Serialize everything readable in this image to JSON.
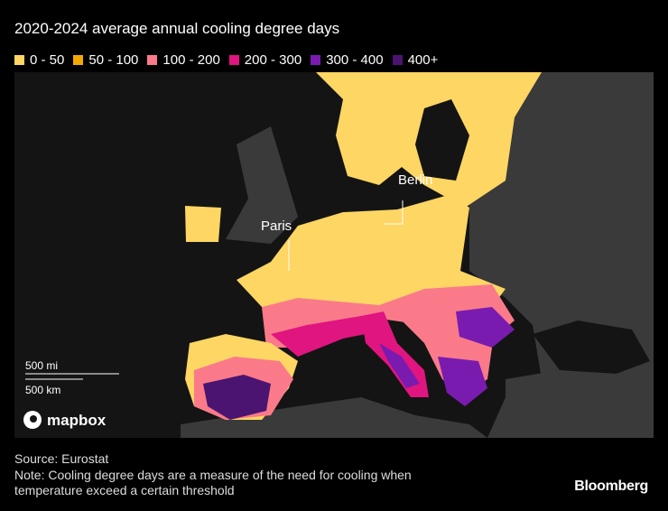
{
  "title": "2020-2024 average annual cooling degree days",
  "legend": {
    "items": [
      {
        "label": "0 - 50",
        "color": "#fdd663"
      },
      {
        "label": "50 - 100",
        "color": "#f5a800"
      },
      {
        "label": "100 - 200",
        "color": "#fa7a8a"
      },
      {
        "label": "200 - 300",
        "color": "#e0157f"
      },
      {
        "label": "300 - 400",
        "color": "#7a1bb0"
      },
      {
        "label": "400+",
        "color": "#4a1470"
      }
    ]
  },
  "map": {
    "cities": [
      "Paris",
      "Berlin"
    ],
    "scale": [
      "500 mi",
      "500 km"
    ],
    "attribution": "mapbox"
  },
  "footer": {
    "source": "Source: Eurostat",
    "note_lines": [
      "Note: Cooling degree days are a measure of the need for cooling when",
      "temperature exceed a certain threshold"
    ],
    "brand": "Bloomberg"
  }
}
